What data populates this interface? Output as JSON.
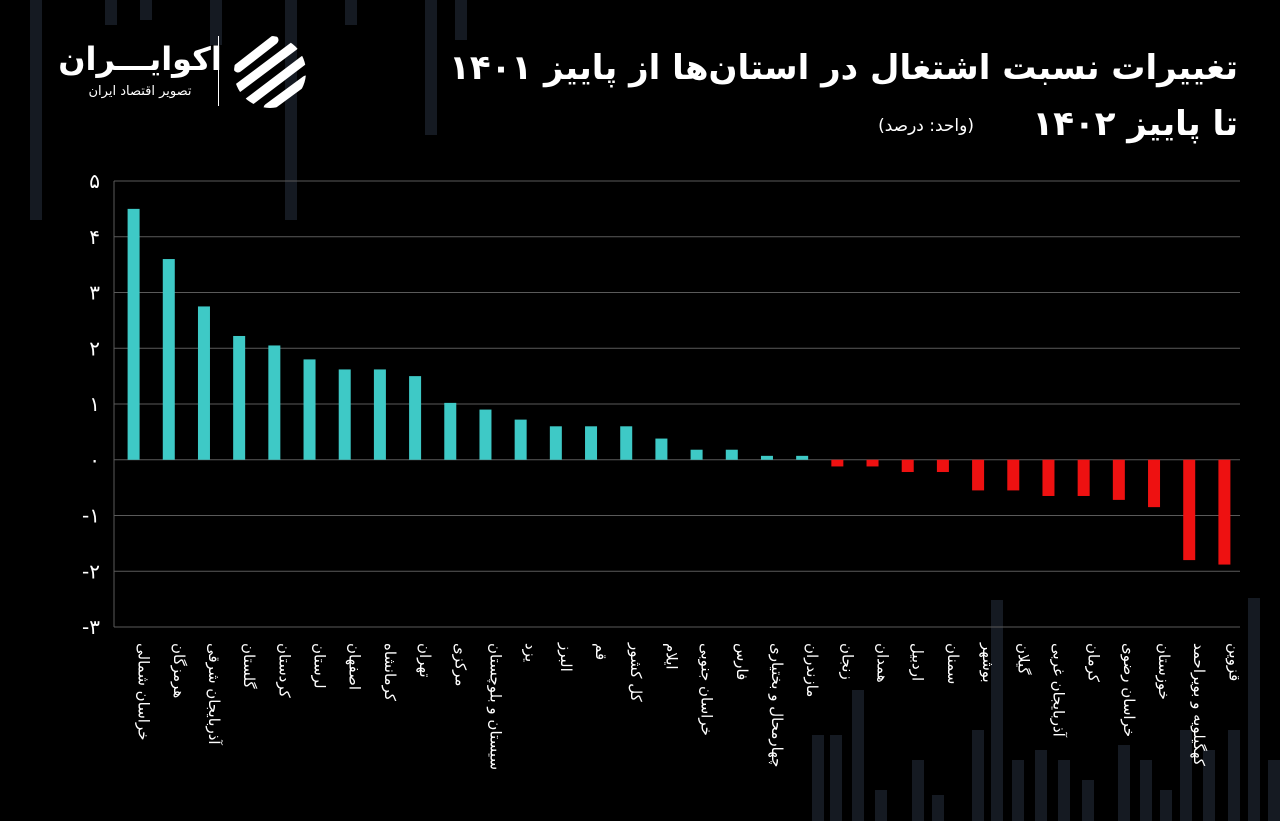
{
  "header": {
    "title_line1": "تغییرات نسبت اشتغال در استان‌ها از پاییز ۱۴۰۱",
    "title_line2": "تا پاییز ۱۴۰۲",
    "unit": "(واحد: درصد)"
  },
  "brand": {
    "name": "اکوایـــران",
    "subtitle": "تصویر اقتصاد ایران",
    "logo_icon": "ecoiran-stripes-logo-icon"
  },
  "colors": {
    "background": "#000000",
    "positive": "#3ec9c6",
    "negative": "#ee1111",
    "gridline": "#5a5a5a"
  },
  "chart_data": {
    "type": "bar",
    "title": "تغییرات نسبت اشتغال در استان‌ها از پاییز ۱۴۰۱ تا پاییز ۱۴۰۲",
    "unit": "(واحد: درصد)",
    "ylim": [
      -3,
      5
    ],
    "yticks": [
      5,
      4,
      3,
      2,
      1,
      0,
      -1,
      -2,
      -3
    ],
    "ytick_labels": [
      "۵",
      "۴",
      "۳",
      "۲",
      "۱",
      "۰",
      "-۱",
      "-۲",
      "-۳"
    ],
    "grid": true,
    "categories": [
      "خراسان شمالی",
      "هرمزگان",
      "آذربایجان شرقی",
      "گلستان",
      "کردستان",
      "لرستان",
      "اصفهان",
      "کرمانشاه",
      "تهران",
      "مرکزی",
      "سیستان و بلوچستان",
      "یزد",
      "البرز",
      "قم",
      "کل کشور",
      "ایلام",
      "خراسان جنوبی",
      "فارس",
      "چهارمحال و بختیاری",
      "مازندران",
      "زنجان",
      "همدان",
      "اردبیل",
      "سمنان",
      "بوشهر",
      "گیلان",
      "آذربایجان غربی",
      "کرمان",
      "خراسان رضوی",
      "خوزستان",
      "کهگیلویه و بویراحمد",
      "قزوین"
    ],
    "values": [
      4.5,
      3.6,
      2.75,
      2.22,
      2.05,
      1.8,
      1.62,
      1.62,
      1.5,
      1.02,
      0.9,
      0.72,
      0.6,
      0.6,
      0.6,
      0.38,
      0.18,
      0.18,
      0.07,
      0.07,
      -0.12,
      -0.12,
      -0.22,
      -0.22,
      -0.55,
      -0.55,
      -0.65,
      -0.65,
      -0.72,
      -0.85,
      -1.8,
      -1.88
    ]
  }
}
